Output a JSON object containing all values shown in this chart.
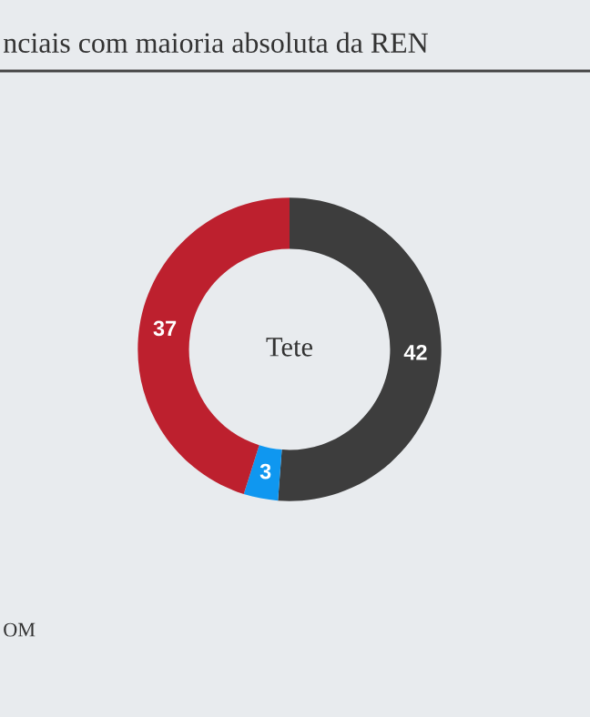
{
  "chart_data": {
    "type": "donut",
    "title": "nciais com maioria absoluta da REN",
    "categories": [
      null,
      null,
      null
    ],
    "values": [
      42,
      3,
      37
    ],
    "colors": [
      "#3d3d3d",
      "#0f97f0",
      "#bd202e"
    ],
    "data_labels": true,
    "legend": false,
    "annotations": [
      "Tete",
      "OM"
    ]
  }
}
